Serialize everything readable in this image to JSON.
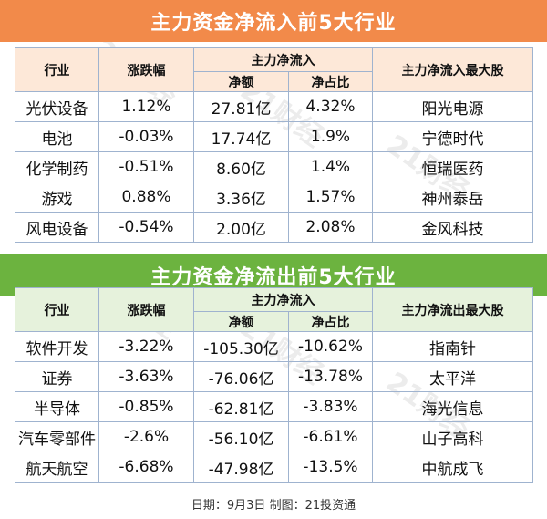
{
  "inflow": {
    "title": "主力资金净流入前5大行业",
    "headers": {
      "industry": "行业",
      "change": "涨跌幅",
      "main_flow": "主力净流入",
      "net_amount": "净额",
      "net_ratio": "净占比",
      "top_stock": "主力净流入最大股"
    },
    "rows": [
      {
        "industry": "光伏设备",
        "change": "1.12%",
        "amount": "27.81亿",
        "ratio": "4.32%",
        "stock": "阳光电源"
      },
      {
        "industry": "电池",
        "change": "-0.03%",
        "amount": "17.74亿",
        "ratio": "1.9%",
        "stock": "宁德时代"
      },
      {
        "industry": "化学制药",
        "change": "-0.51%",
        "amount": "8.60亿",
        "ratio": "1.4%",
        "stock": "恒瑞医药"
      },
      {
        "industry": "游戏",
        "change": "0.88%",
        "amount": "3.36亿",
        "ratio": "1.57%",
        "stock": "神州泰岳"
      },
      {
        "industry": "风电设备",
        "change": "-0.54%",
        "amount": "2.00亿",
        "ratio": "2.08%",
        "stock": "金风科技"
      }
    ]
  },
  "outflow": {
    "title": "主力资金净流出前5大行业",
    "headers": {
      "industry": "行业",
      "change": "涨跌幅",
      "main_flow": "主力净流入",
      "net_amount": "净额",
      "net_ratio": "净占比",
      "top_stock": "主力净流出最大股"
    },
    "rows": [
      {
        "industry": "软件开发",
        "change": "-3.22%",
        "amount": "-105.30亿",
        "ratio": "-10.62%",
        "stock": "指南针"
      },
      {
        "industry": "证券",
        "change": "-3.63%",
        "amount": "-76.06亿",
        "ratio": "-13.78%",
        "stock": "太平洋"
      },
      {
        "industry": "半导体",
        "change": "-0.85%",
        "amount": "-62.81亿",
        "ratio": "-3.83%",
        "stock": "海光信息"
      },
      {
        "industry": "汽车零部件",
        "change": "-2.6%",
        "amount": "-56.10亿",
        "ratio": "-6.61%",
        "stock": "山子高科"
      },
      {
        "industry": "航天航空",
        "change": "-6.68%",
        "amount": "-47.98亿",
        "ratio": "-13.5%",
        "stock": "中航成飞"
      }
    ]
  },
  "footer": "日期：9月3日 制图：21投资通",
  "watermark": "21财经",
  "colors": {
    "inflow_banner": "#f28a4a",
    "inflow_header_bg": "#fde8d8",
    "outflow_banner": "#6cb33f",
    "outflow_header_bg": "#e6f2dc",
    "grid_border": "#9fb3cf"
  }
}
